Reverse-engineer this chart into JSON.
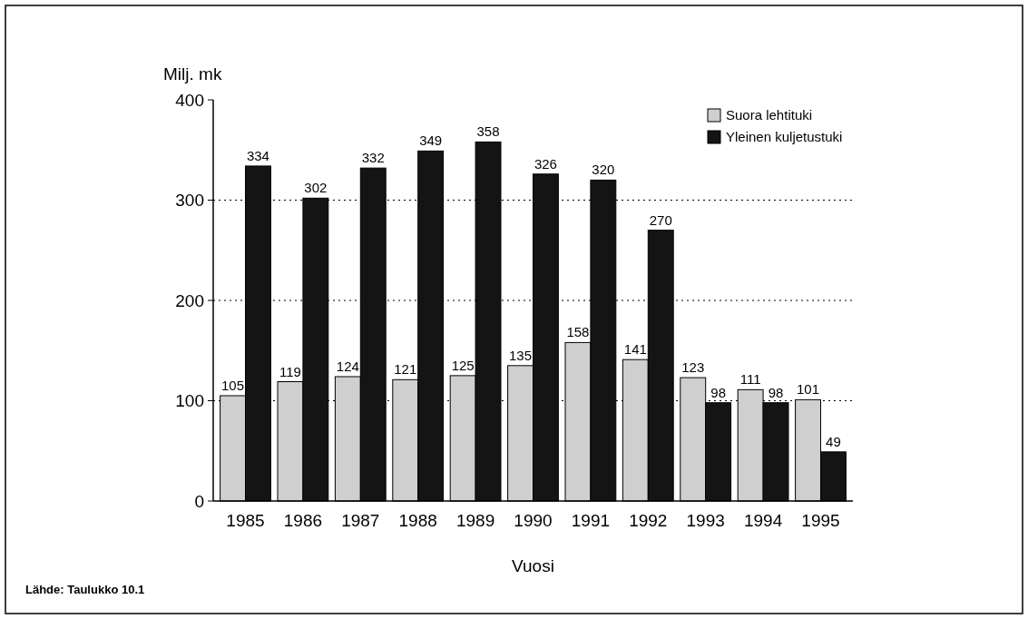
{
  "chart_data": {
    "type": "bar",
    "ylabel": "Milj. mk",
    "xlabel": "Vuosi",
    "categories": [
      "1985",
      "1986",
      "1987",
      "1988",
      "1989",
      "1990",
      "1991",
      "1992",
      "1993",
      "1994",
      "1995"
    ],
    "series": [
      {
        "name": "Suora lehtituki",
        "color": "#cfcfcf",
        "values": [
          105,
          119,
          124,
          121,
          125,
          135,
          158,
          141,
          123,
          111,
          101
        ]
      },
      {
        "name": "Yleinen kuljetustuki",
        "color": "#141414",
        "values": [
          334,
          302,
          332,
          349,
          358,
          326,
          320,
          270,
          98,
          98,
          49
        ]
      }
    ],
    "ylim": [
      0,
      400
    ],
    "yticks": [
      0,
      100,
      200,
      300,
      400
    ],
    "grid": "y",
    "legend": "top right",
    "data_labels": true,
    "annotations": [
      "Lähde: Taulukko 10.1"
    ]
  }
}
